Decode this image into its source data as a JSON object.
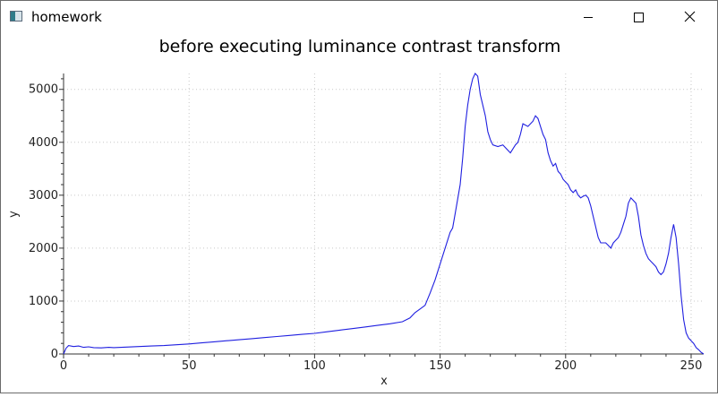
{
  "window": {
    "title": "homework",
    "icon": "app-window-icon",
    "controls": [
      "minimize-icon",
      "maximize-icon",
      "close-icon"
    ]
  },
  "chart_data": {
    "type": "line",
    "title": "before executing luminance contrast transform",
    "xlabel": "x",
    "ylabel": "y",
    "xlim": [
      0,
      255
    ],
    "ylim": [
      0,
      5300
    ],
    "x_ticks": [
      0,
      50,
      100,
      150,
      200,
      250
    ],
    "y_ticks": [
      0,
      1000,
      2000,
      3000,
      4000,
      5000
    ],
    "grid": true,
    "line_color": "#1f1fe0",
    "series": [
      {
        "points": [
          [
            0,
            0
          ],
          [
            1,
            110
          ],
          [
            2,
            160
          ],
          [
            4,
            140
          ],
          [
            6,
            150
          ],
          [
            8,
            125
          ],
          [
            10,
            135
          ],
          [
            12,
            120
          ],
          [
            15,
            115
          ],
          [
            18,
            125
          ],
          [
            20,
            120
          ],
          [
            25,
            130
          ],
          [
            30,
            140
          ],
          [
            35,
            150
          ],
          [
            40,
            160
          ],
          [
            45,
            175
          ],
          [
            50,
            190
          ],
          [
            55,
            210
          ],
          [
            60,
            230
          ],
          [
            65,
            250
          ],
          [
            70,
            270
          ],
          [
            75,
            290
          ],
          [
            80,
            310
          ],
          [
            85,
            330
          ],
          [
            90,
            350
          ],
          [
            95,
            370
          ],
          [
            100,
            390
          ],
          [
            105,
            420
          ],
          [
            110,
            450
          ],
          [
            115,
            480
          ],
          [
            120,
            510
          ],
          [
            125,
            540
          ],
          [
            130,
            570
          ],
          [
            135,
            610
          ],
          [
            138,
            680
          ],
          [
            140,
            780
          ],
          [
            142,
            850
          ],
          [
            144,
            920
          ],
          [
            146,
            1150
          ],
          [
            148,
            1400
          ],
          [
            150,
            1700
          ],
          [
            152,
            2000
          ],
          [
            154,
            2300
          ],
          [
            155,
            2380
          ],
          [
            156,
            2650
          ],
          [
            158,
            3200
          ],
          [
            159,
            3700
          ],
          [
            160,
            4300
          ],
          [
            161,
            4700
          ],
          [
            162,
            5000
          ],
          [
            163,
            5200
          ],
          [
            164,
            5300
          ],
          [
            165,
            5250
          ],
          [
            166,
            4900
          ],
          [
            168,
            4500
          ],
          [
            169,
            4200
          ],
          [
            170,
            4050
          ],
          [
            171,
            3950
          ],
          [
            173,
            3920
          ],
          [
            175,
            3950
          ],
          [
            177,
            3850
          ],
          [
            178,
            3800
          ],
          [
            180,
            3950
          ],
          [
            181,
            4000
          ],
          [
            182,
            4150
          ],
          [
            183,
            4350
          ],
          [
            185,
            4300
          ],
          [
            187,
            4400
          ],
          [
            188,
            4500
          ],
          [
            189,
            4450
          ],
          [
            190,
            4300
          ],
          [
            191,
            4150
          ],
          [
            192,
            4050
          ],
          [
            193,
            3800
          ],
          [
            194,
            3650
          ],
          [
            195,
            3550
          ],
          [
            196,
            3600
          ],
          [
            197,
            3450
          ],
          [
            198,
            3400
          ],
          [
            199,
            3300
          ],
          [
            200,
            3250
          ],
          [
            201,
            3200
          ],
          [
            202,
            3100
          ],
          [
            203,
            3050
          ],
          [
            204,
            3100
          ],
          [
            205,
            3000
          ],
          [
            206,
            2950
          ],
          [
            207,
            2980
          ],
          [
            208,
            3000
          ],
          [
            209,
            2950
          ],
          [
            210,
            2800
          ],
          [
            211,
            2600
          ],
          [
            212,
            2400
          ],
          [
            213,
            2200
          ],
          [
            214,
            2100
          ],
          [
            215,
            2100
          ],
          [
            216,
            2100
          ],
          [
            217,
            2050
          ],
          [
            218,
            2000
          ],
          [
            219,
            2100
          ],
          [
            220,
            2150
          ],
          [
            221,
            2200
          ],
          [
            222,
            2300
          ],
          [
            223,
            2450
          ],
          [
            224,
            2600
          ],
          [
            225,
            2850
          ],
          [
            226,
            2950
          ],
          [
            227,
            2900
          ],
          [
            228,
            2850
          ],
          [
            229,
            2600
          ],
          [
            230,
            2250
          ],
          [
            231,
            2050
          ],
          [
            232,
            1900
          ],
          [
            233,
            1800
          ],
          [
            234,
            1750
          ],
          [
            235,
            1700
          ],
          [
            236,
            1650
          ],
          [
            237,
            1550
          ],
          [
            238,
            1500
          ],
          [
            239,
            1550
          ],
          [
            240,
            1700
          ],
          [
            241,
            1900
          ],
          [
            242,
            2200
          ],
          [
            243,
            2450
          ],
          [
            244,
            2200
          ],
          [
            245,
            1700
          ],
          [
            246,
            1100
          ],
          [
            247,
            650
          ],
          [
            248,
            400
          ],
          [
            249,
            300
          ],
          [
            250,
            250
          ],
          [
            251,
            200
          ],
          [
            252,
            120
          ],
          [
            253,
            80
          ],
          [
            254,
            30
          ],
          [
            255,
            0
          ]
        ]
      }
    ]
  }
}
